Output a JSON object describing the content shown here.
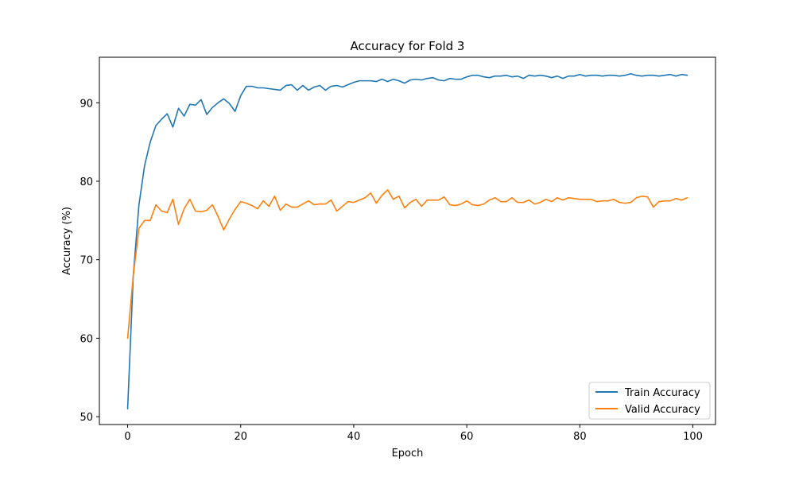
{
  "chart_data": {
    "type": "line",
    "title": "Accuracy for Fold 3",
    "xlabel": "Epoch",
    "ylabel": "Accuracy (%)",
    "xlim": [
      -5,
      104
    ],
    "ylim": [
      49,
      95.8
    ],
    "xticks": [
      0,
      20,
      40,
      60,
      80,
      100
    ],
    "yticks": [
      50,
      60,
      70,
      80,
      90
    ],
    "grid": false,
    "legend_position": "lower-right",
    "series": [
      {
        "name": "Train Accuracy",
        "color": "#1f77b4",
        "values": [
          51.0,
          68.0,
          77.0,
          82.0,
          85.0,
          87.1,
          87.9,
          88.6,
          86.9,
          89.3,
          88.3,
          89.8,
          89.7,
          90.4,
          88.5,
          89.4,
          90.0,
          90.5,
          89.9,
          88.9,
          90.9,
          92.1,
          92.1,
          91.9,
          91.9,
          91.8,
          91.7,
          91.6,
          92.2,
          92.3,
          91.6,
          92.2,
          91.6,
          92.0,
          92.2,
          91.6,
          92.1,
          92.2,
          92.0,
          92.3,
          92.6,
          92.8,
          92.8,
          92.8,
          92.7,
          93.0,
          92.7,
          93.0,
          92.8,
          92.5,
          92.9,
          93.0,
          92.9,
          93.1,
          93.2,
          92.9,
          92.8,
          93.1,
          93.0,
          93.0,
          93.3,
          93.5,
          93.5,
          93.3,
          93.2,
          93.4,
          93.4,
          93.5,
          93.3,
          93.4,
          93.1,
          93.5,
          93.4,
          93.5,
          93.4,
          93.2,
          93.4,
          93.1,
          93.4,
          93.4,
          93.6,
          93.4,
          93.5,
          93.5,
          93.4,
          93.5,
          93.5,
          93.4,
          93.5,
          93.7,
          93.5,
          93.4,
          93.5,
          93.5,
          93.4,
          93.5,
          93.6,
          93.4,
          93.6,
          93.5
        ]
      },
      {
        "name": "Valid Accuracy",
        "color": "#ff7f0e",
        "values": [
          60.0,
          68.0,
          74.0,
          75.0,
          75.0,
          77.0,
          76.2,
          76.0,
          77.7,
          74.5,
          76.5,
          77.7,
          76.2,
          76.1,
          76.3,
          77.0,
          75.5,
          73.8,
          75.2,
          76.4,
          77.4,
          77.2,
          76.9,
          76.5,
          77.5,
          76.8,
          78.1,
          76.3,
          77.1,
          76.7,
          76.7,
          77.1,
          77.5,
          77.0,
          77.1,
          77.1,
          77.6,
          76.2,
          76.8,
          77.4,
          77.3,
          77.6,
          77.9,
          78.5,
          77.2,
          78.2,
          78.9,
          77.7,
          78.1,
          76.6,
          77.3,
          77.7,
          76.8,
          77.6,
          77.6,
          77.6,
          78.0,
          77.0,
          76.9,
          77.1,
          77.5,
          77.0,
          76.9,
          77.1,
          77.6,
          77.9,
          77.4,
          77.4,
          77.9,
          77.3,
          77.3,
          77.6,
          77.1,
          77.3,
          77.7,
          77.4,
          77.9,
          77.6,
          77.9,
          77.8,
          77.7,
          77.7,
          77.7,
          77.4,
          77.5,
          77.5,
          77.7,
          77.3,
          77.2,
          77.3,
          77.9,
          78.1,
          78.0,
          76.7,
          77.4,
          77.5,
          77.5,
          77.8,
          77.6,
          77.9
        ]
      }
    ]
  }
}
